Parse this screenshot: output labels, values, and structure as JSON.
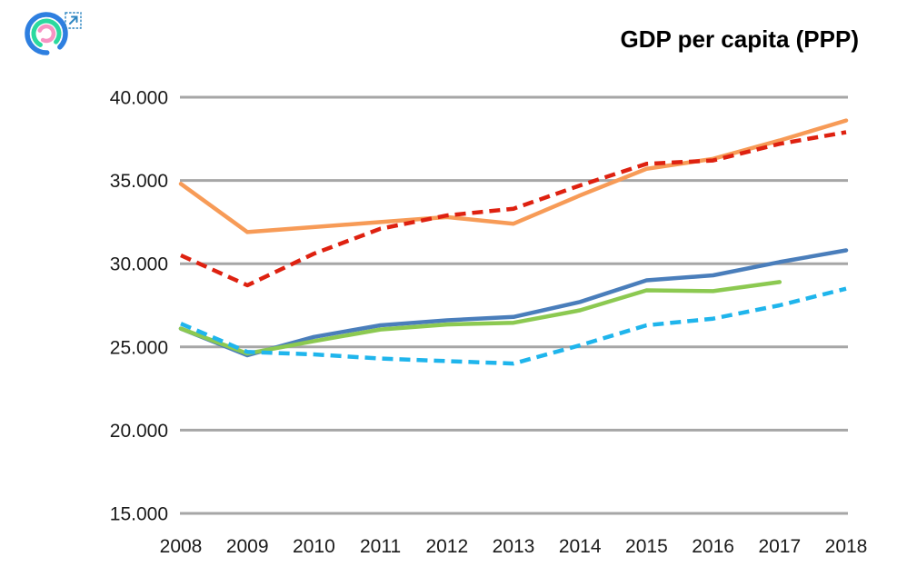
{
  "logo": {
    "name": "concentric-rings-logo",
    "outer_ring_color": "#2E7FE0",
    "middle_ring_color": "#2BD99F",
    "inner_ring_color": "#F793C3",
    "external_link_color": "#2E86C1"
  },
  "chart_data": {
    "type": "line",
    "title": "GDP per capita (PPP)",
    "x": [
      2008,
      2009,
      2010,
      2011,
      2012,
      2013,
      2014,
      2015,
      2016,
      2017,
      2018
    ],
    "x_tick_labels": [
      "2008",
      "2009",
      "2010",
      "2011",
      "2012",
      "2013",
      "2014",
      "2015",
      "2016",
      "2017",
      "2018"
    ],
    "y_ticks": [
      40000,
      35000,
      30000,
      25000,
      20000,
      15000
    ],
    "y_tick_labels": [
      "40.000",
      "35.000",
      "30.000",
      "25.000",
      "20.000",
      "15.000"
    ],
    "ylim": [
      15000,
      40000
    ],
    "grid": "horizontal-only",
    "grid_color": "#A6A6A6",
    "axis_text_color": "#1A1A1A",
    "legend": "none",
    "series": [
      {
        "name": "series-orange-solid",
        "color": "#F79B57",
        "style": "solid",
        "values": [
          34800,
          31900,
          32200,
          32500,
          32800,
          32400,
          34100,
          35700,
          36300,
          37400,
          38600
        ]
      },
      {
        "name": "series-red-dashed",
        "color": "#DE2110",
        "style": "dashed",
        "values": [
          30500,
          28700,
          30600,
          32100,
          32900,
          33300,
          34700,
          36000,
          36200,
          37200,
          37900
        ]
      },
      {
        "name": "series-blue-solid",
        "color": "#4A7EBB",
        "style": "solid",
        "values": [
          26100,
          24500,
          25600,
          26300,
          26600,
          26800,
          27700,
          29000,
          29300,
          30100,
          30800
        ]
      },
      {
        "name": "series-green-solid",
        "color": "#8CC951",
        "style": "solid",
        "values": [
          26100,
          24600,
          25350,
          26050,
          26350,
          26450,
          27200,
          28400,
          28350,
          28900,
          null
        ]
      },
      {
        "name": "series-cyan-dashed",
        "color": "#1FB5EC",
        "style": "dashed",
        "values": [
          26400,
          24700,
          24550,
          24300,
          24150,
          24000,
          25100,
          26300,
          26700,
          27500,
          28500
        ]
      }
    ]
  }
}
